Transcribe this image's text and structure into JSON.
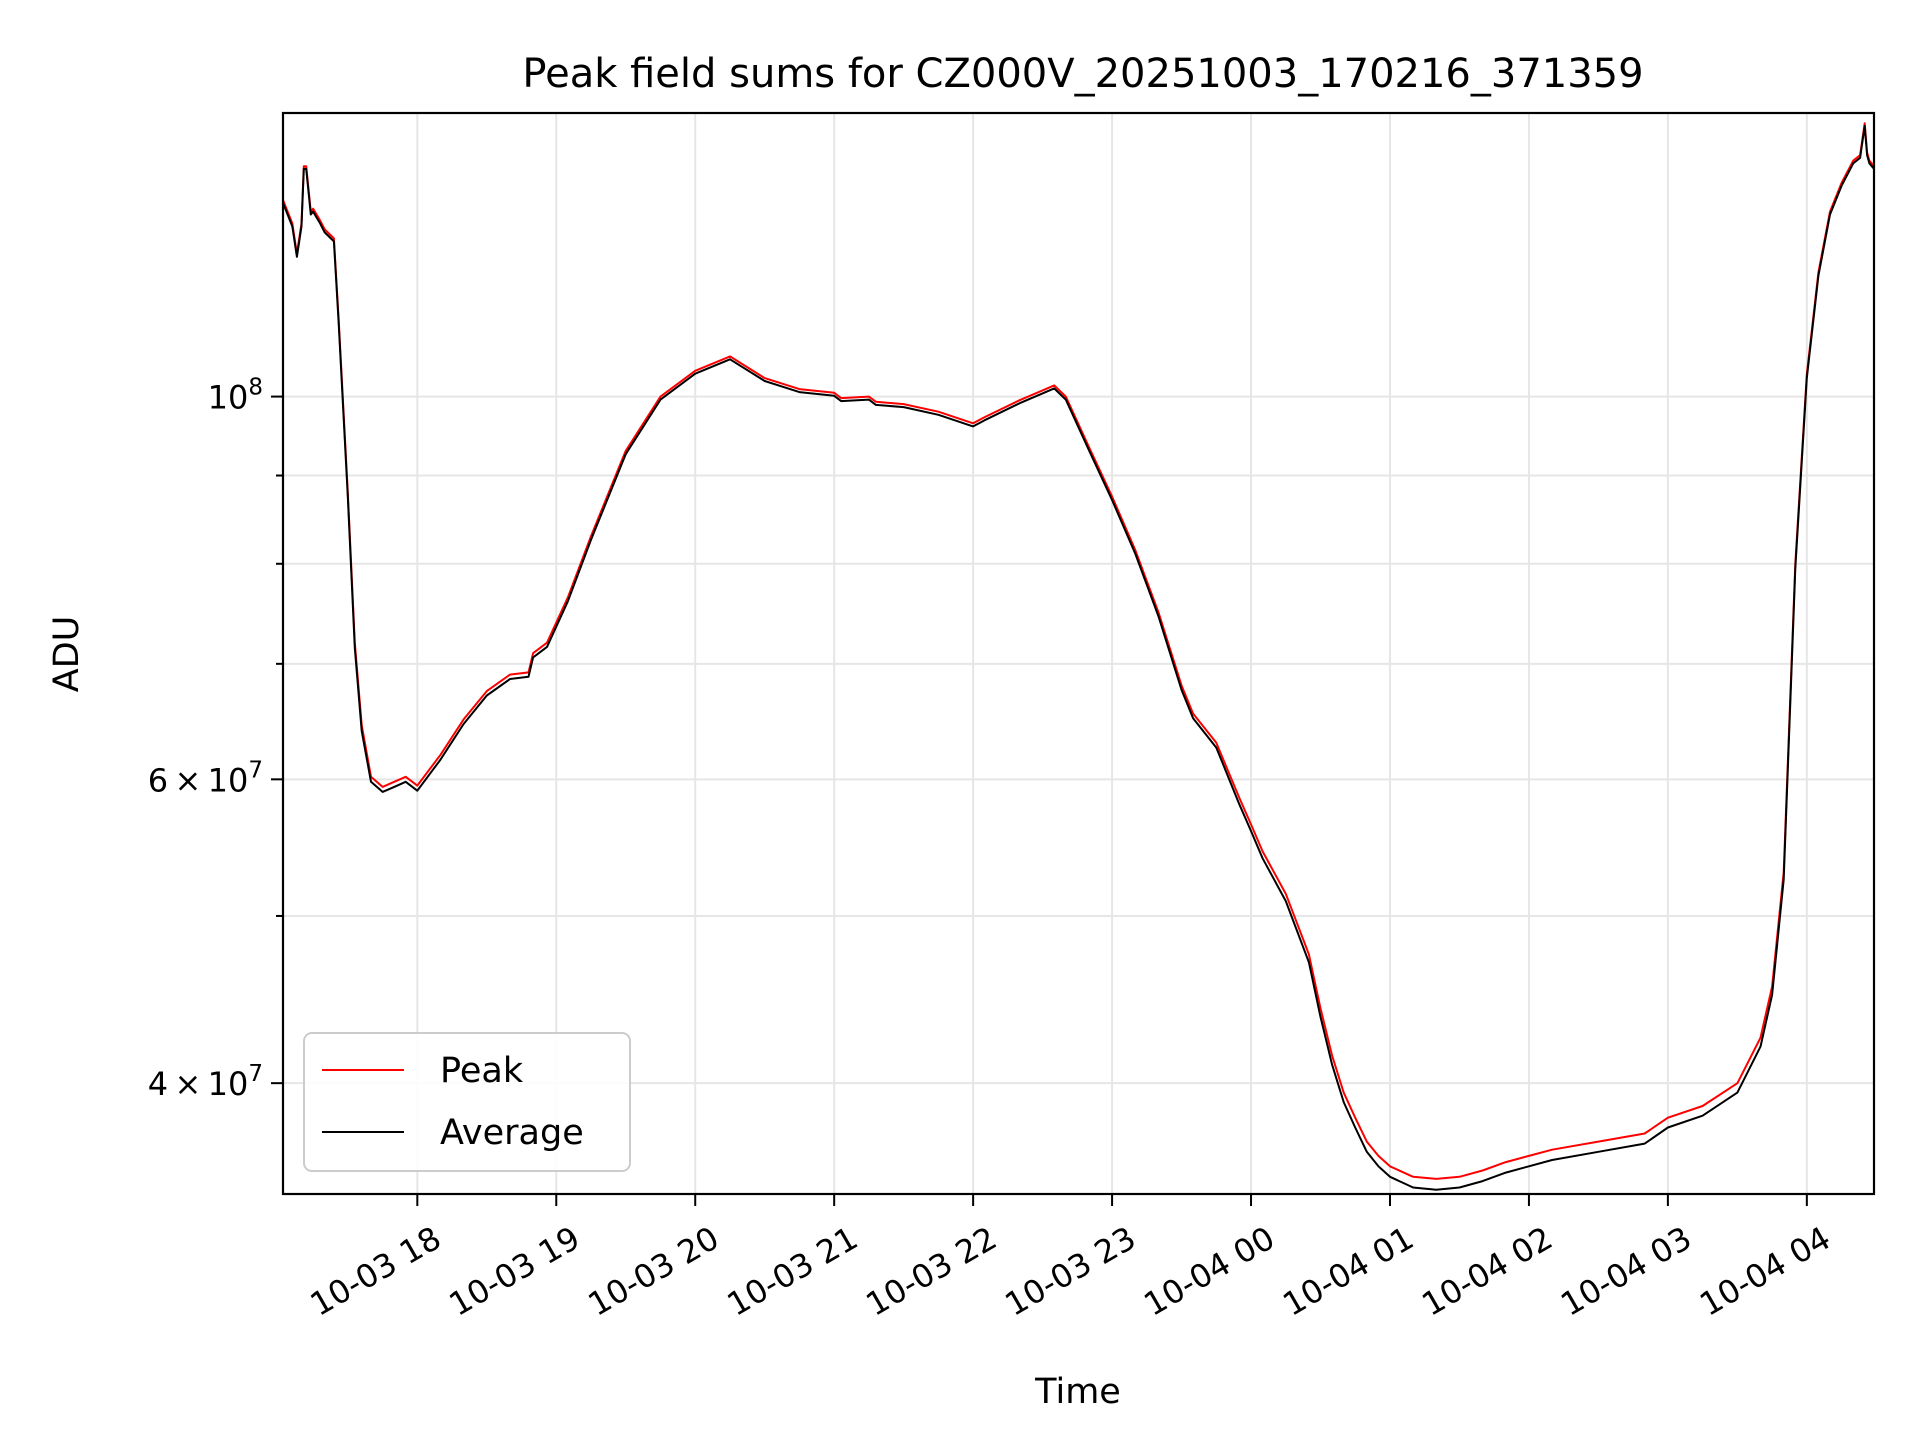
{
  "chart_data": {
    "type": "line",
    "title": "Peak field sums for CZ000V_20251003_170216_371359",
    "xlabel": "Time",
    "ylabel": "ADU",
    "y_scale": "log",
    "ylim": [
      34500000,
      146000000
    ],
    "xlim": [
      "2025-10-03 17:02",
      "2025-10-04 04:29"
    ],
    "grid": true,
    "legend_position": "lower-left",
    "x_ticks": [
      {
        "label": "10-03 18",
        "time": "2025-10-03 18:00"
      },
      {
        "label": "10-03 19",
        "time": "2025-10-03 19:00"
      },
      {
        "label": "10-03 20",
        "time": "2025-10-03 20:00"
      },
      {
        "label": "10-03 21",
        "time": "2025-10-03 21:00"
      },
      {
        "label": "10-03 22",
        "time": "2025-10-03 22:00"
      },
      {
        "label": "10-03 23",
        "time": "2025-10-03 23:00"
      },
      {
        "label": "10-04 00",
        "time": "2025-10-04 00:00"
      },
      {
        "label": "10-04 01",
        "time": "2025-10-04 01:00"
      },
      {
        "label": "10-04 02",
        "time": "2025-10-04 02:00"
      },
      {
        "label": "10-04 03",
        "time": "2025-10-04 03:00"
      },
      {
        "label": "10-04 04",
        "time": "2025-10-04 04:00"
      }
    ],
    "y_ticks": [
      {
        "value": 40000000,
        "mantissa": "4",
        "exponent": "7"
      },
      {
        "value": 60000000,
        "mantissa": "6",
        "exponent": "7"
      },
      {
        "value": 100000000,
        "mantissa": "",
        "exponent": "8"
      }
    ],
    "y_minor_gridlines": [
      50000000,
      70000000,
      80000000,
      90000000
    ],
    "series": [
      {
        "name": "Peak",
        "color": "#ff0000",
        "x": [
          "2025-10-03 17:02",
          "2025-10-03 17:06",
          "2025-10-03 17:08",
          "2025-10-03 17:10",
          "2025-10-03 17:11",
          "2025-10-03 17:12",
          "2025-10-03 17:14",
          "2025-10-03 17:15",
          "2025-10-03 17:18",
          "2025-10-03 17:20",
          "2025-10-03 17:24",
          "2025-10-03 17:26",
          "2025-10-03 17:30",
          "2025-10-03 17:33",
          "2025-10-03 17:36",
          "2025-10-03 17:40",
          "2025-10-03 17:45",
          "2025-10-03 17:50",
          "2025-10-03 17:55",
          "2025-10-03 18:00",
          "2025-10-03 18:10",
          "2025-10-03 18:20",
          "2025-10-03 18:30",
          "2025-10-03 18:40",
          "2025-10-03 18:48",
          "2025-10-03 18:50",
          "2025-10-03 18:56",
          "2025-10-03 19:05",
          "2025-10-03 19:15",
          "2025-10-03 19:30",
          "2025-10-03 19:45",
          "2025-10-03 20:00",
          "2025-10-03 20:15",
          "2025-10-03 20:30",
          "2025-10-03 20:45",
          "2025-10-03 21:00",
          "2025-10-03 21:03",
          "2025-10-03 21:15",
          "2025-10-03 21:18",
          "2025-10-03 21:30",
          "2025-10-03 21:45",
          "2025-10-03 22:00",
          "2025-10-03 22:05",
          "2025-10-03 22:20",
          "2025-10-03 22:35",
          "2025-10-03 22:40",
          "2025-10-03 22:50",
          "2025-10-03 23:00",
          "2025-10-03 23:10",
          "2025-10-03 23:20",
          "2025-10-03 23:30",
          "2025-10-03 23:35",
          "2025-10-03 23:45",
          "2025-10-03 23:55",
          "2025-10-04 00:00",
          "2025-10-04 00:05",
          "2025-10-04 00:15",
          "2025-10-04 00:25",
          "2025-10-04 00:30",
          "2025-10-04 00:35",
          "2025-10-04 00:40",
          "2025-10-04 00:45",
          "2025-10-04 00:50",
          "2025-10-04 00:55",
          "2025-10-04 01:00",
          "2025-10-04 01:10",
          "2025-10-04 01:20",
          "2025-10-04 01:30",
          "2025-10-04 01:40",
          "2025-10-04 01:50",
          "2025-10-04 02:00",
          "2025-10-04 02:10",
          "2025-10-04 02:30",
          "2025-10-04 02:50",
          "2025-10-04 03:00",
          "2025-10-04 03:15",
          "2025-10-04 03:30",
          "2025-10-04 03:40",
          "2025-10-04 03:45",
          "2025-10-04 03:50",
          "2025-10-04 03:55",
          "2025-10-04 04:00",
          "2025-10-04 04:05",
          "2025-10-04 04:10",
          "2025-10-04 04:15",
          "2025-10-04 04:20",
          "2025-10-04 04:23",
          "2025-10-04 04:25",
          "2025-10-04 04:26",
          "2025-10-04 04:27",
          "2025-10-04 04:29"
        ],
        "y": [
          130000000,
          126000000,
          121000000,
          126000000,
          136000000,
          136000000,
          128000000,
          128500000,
          126500000,
          125000000,
          123500000,
          111000000,
          88000000,
          72000000,
          64500000,
          60200000,
          59400000,
          59800000,
          60200000,
          59500000,
          62000000,
          65000000,
          67500000,
          69000000,
          69200000,
          71000000,
          72000000,
          76500000,
          83000000,
          93000000,
          100000000,
          103500000,
          105500000,
          102500000,
          101000000,
          100500000,
          99800000,
          100000000,
          99300000,
          99000000,
          98000000,
          96500000,
          97300000,
          99500000,
          101500000,
          100000000,
          93500000,
          87500000,
          81500000,
          75000000,
          68000000,
          65500000,
          63000000,
          58500000,
          56500000,
          54500000,
          51500000,
          47500000,
          44200000,
          41500000,
          39500000,
          38200000,
          37000000,
          36300000,
          35800000,
          35300000,
          35200000,
          35300000,
          35600000,
          36000000,
          36300000,
          36600000,
          37000000,
          37400000,
          38200000,
          38800000,
          40000000,
          42500000,
          45500000,
          53000000,
          80000000,
          103000000,
          118000000,
          128000000,
          133000000,
          137000000,
          138000000,
          144000000,
          138500000,
          137000000,
          136000000
        ]
      },
      {
        "name": "Average",
        "color": "#000000",
        "x": [
          "2025-10-03 17:02",
          "2025-10-03 17:06",
          "2025-10-03 17:08",
          "2025-10-03 17:10",
          "2025-10-03 17:11",
          "2025-10-03 17:12",
          "2025-10-03 17:14",
          "2025-10-03 17:15",
          "2025-10-03 17:18",
          "2025-10-03 17:20",
          "2025-10-03 17:24",
          "2025-10-03 17:26",
          "2025-10-03 17:30",
          "2025-10-03 17:33",
          "2025-10-03 17:36",
          "2025-10-03 17:40",
          "2025-10-03 17:45",
          "2025-10-03 17:50",
          "2025-10-03 17:55",
          "2025-10-03 18:00",
          "2025-10-03 18:10",
          "2025-10-03 18:20",
          "2025-10-03 18:30",
          "2025-10-03 18:40",
          "2025-10-03 18:48",
          "2025-10-03 18:50",
          "2025-10-03 18:56",
          "2025-10-03 19:05",
          "2025-10-03 19:15",
          "2025-10-03 19:30",
          "2025-10-03 19:45",
          "2025-10-03 20:00",
          "2025-10-03 20:15",
          "2025-10-03 20:30",
          "2025-10-03 20:45",
          "2025-10-03 21:00",
          "2025-10-03 21:03",
          "2025-10-03 21:15",
          "2025-10-03 21:18",
          "2025-10-03 21:30",
          "2025-10-03 21:45",
          "2025-10-03 22:00",
          "2025-10-03 22:05",
          "2025-10-03 22:20",
          "2025-10-03 22:35",
          "2025-10-03 22:40",
          "2025-10-03 22:50",
          "2025-10-03 23:00",
          "2025-10-03 23:10",
          "2025-10-03 23:20",
          "2025-10-03 23:30",
          "2025-10-03 23:35",
          "2025-10-03 23:45",
          "2025-10-03 23:55",
          "2025-10-04 00:00",
          "2025-10-04 00:05",
          "2025-10-04 00:15",
          "2025-10-04 00:25",
          "2025-10-04 00:30",
          "2025-10-04 00:35",
          "2025-10-04 00:40",
          "2025-10-04 00:45",
          "2025-10-04 00:50",
          "2025-10-04 00:55",
          "2025-10-04 01:00",
          "2025-10-04 01:10",
          "2025-10-04 01:20",
          "2025-10-04 01:30",
          "2025-10-04 01:40",
          "2025-10-04 01:50",
          "2025-10-04 02:00",
          "2025-10-04 02:10",
          "2025-10-04 02:30",
          "2025-10-04 02:50",
          "2025-10-04 03:00",
          "2025-10-04 03:15",
          "2025-10-04 03:30",
          "2025-10-04 03:40",
          "2025-10-04 03:45",
          "2025-10-04 03:50",
          "2025-10-04 03:55",
          "2025-10-04 04:00",
          "2025-10-04 04:05",
          "2025-10-04 04:10",
          "2025-10-04 04:15",
          "2025-10-04 04:20",
          "2025-10-04 04:23",
          "2025-10-04 04:25",
          "2025-10-04 04:26",
          "2025-10-04 04:27",
          "2025-10-04 04:29"
        ],
        "y": [
          129500000,
          125500000,
          120500000,
          125500000,
          135500000,
          135500000,
          127500000,
          128000000,
          126000000,
          124500000,
          123000000,
          110500000,
          87500000,
          71500000,
          64000000,
          59800000,
          59000000,
          59400000,
          59800000,
          59100000,
          61600000,
          64600000,
          67100000,
          68600000,
          68800000,
          70600000,
          71600000,
          76100000,
          82600000,
          92600000,
          99600000,
          103100000,
          105100000,
          102100000,
          100600000,
          100100000,
          99400000,
          99600000,
          98900000,
          98600000,
          97600000,
          96100000,
          96900000,
          99100000,
          101100000,
          99600000,
          93100000,
          87100000,
          81100000,
          74600000,
          67600000,
          65100000,
          62600000,
          58000000,
          56000000,
          54000000,
          51000000,
          47000000,
          43700000,
          41000000,
          39000000,
          37700000,
          36500000,
          35800000,
          35300000,
          34800000,
          34700000,
          34800000,
          35100000,
          35500000,
          35800000,
          36100000,
          36500000,
          36900000,
          37700000,
          38300000,
          39500000,
          42000000,
          45000000,
          52500000,
          79500000,
          102500000,
          117500000,
          127500000,
          132500000,
          136500000,
          137500000,
          143500000,
          138000000,
          136500000,
          135500000
        ]
      }
    ]
  }
}
